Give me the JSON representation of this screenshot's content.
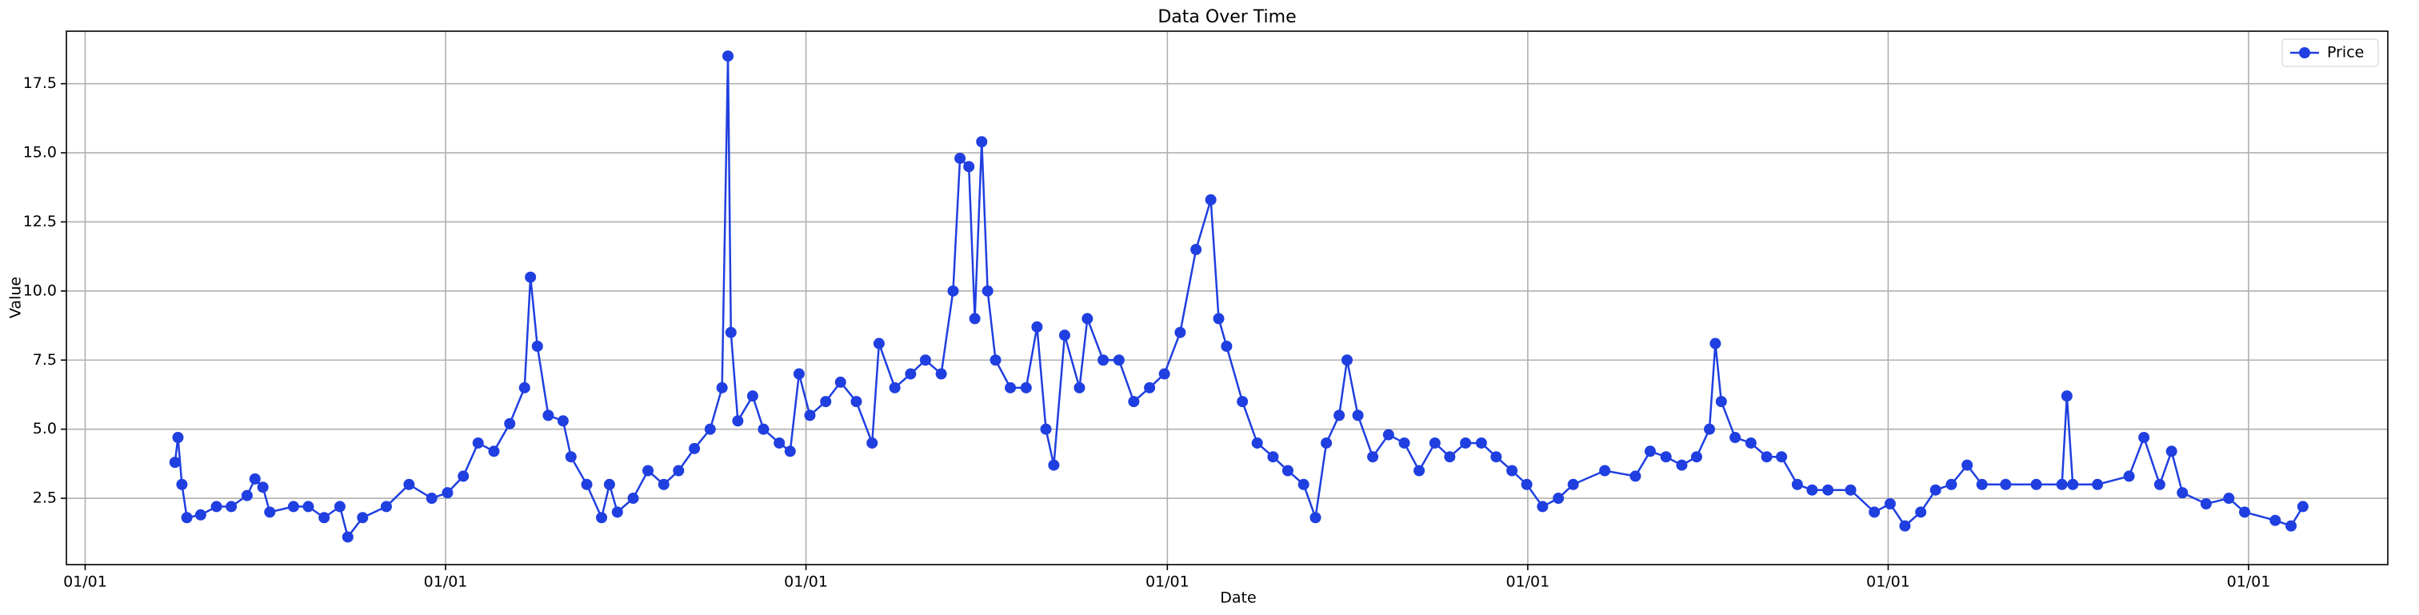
{
  "chart_data": {
    "type": "line",
    "title": "Data Over Time",
    "x_label": "Date",
    "y_label": "Value",
    "x": [
      91,
      94,
      98,
      103,
      117,
      133,
      148,
      164,
      172,
      180,
      187,
      211,
      226,
      242,
      258,
      266,
      281,
      305,
      328,
      351,
      367,
      383,
      398,
      414,
      430,
      445,
      451,
      458,
      469,
      484,
      492,
      508,
      523,
      531,
      539,
      555,
      570,
      586,
      601,
      617,
      633,
      645,
      651,
      654,
      661,
      676,
      687,
      703,
      714,
      723,
      734,
      750,
      765,
      781,
      797,
      804,
      820,
      836,
      851,
      867,
      879,
      886,
      895,
      901,
      908,
      914,
      922,
      937,
      953,
      964,
      973,
      981,
      992,
      1007,
      1015,
      1031,
      1047,
      1062,
      1078,
      1093,
      1109,
      1125,
      1140,
      1148,
      1156,
      1172,
      1187,
      1203,
      1218,
      1234,
      1246,
      1257,
      1270,
      1278,
      1289,
      1304,
      1320,
      1336,
      1351,
      1367,
      1382,
      1398,
      1414,
      1429,
      1445,
      1460,
      1476,
      1492,
      1507,
      1539,
      1570,
      1585,
      1601,
      1617,
      1632,
      1645,
      1651,
      1657,
      1671,
      1687,
      1703,
      1718,
      1734,
      1749,
      1765,
      1788,
      1812,
      1828,
      1843,
      1859,
      1874,
      1890,
      1906,
      1921,
      1945,
      1976,
      2002,
      2007,
      2013,
      2038,
      2070,
      2085,
      2101,
      2113,
      2124,
      2148,
      2171,
      2187,
      2218,
      2234,
      2246
    ],
    "series": [
      {
        "name": "Price",
        "color": "#1f3fe0",
        "values": [
          3.8,
          4.7,
          3.0,
          1.8,
          1.9,
          2.2,
          2.2,
          2.6,
          3.2,
          2.9,
          2.0,
          2.2,
          2.2,
          1.8,
          2.2,
          1.1,
          1.8,
          2.2,
          3.0,
          2.5,
          2.7,
          3.3,
          4.5,
          4.2,
          5.2,
          6.5,
          10.5,
          8.0,
          5.5,
          5.3,
          4.0,
          3.0,
          1.8,
          3.0,
          2.0,
          2.5,
          3.5,
          3.0,
          3.5,
          4.3,
          5.0,
          6.5,
          18.5,
          8.5,
          5.3,
          6.2,
          5.0,
          4.5,
          4.2,
          7.0,
          5.5,
          6.0,
          6.7,
          6.0,
          4.5,
          8.1,
          6.5,
          7.0,
          7.5,
          7.0,
          10.0,
          14.8,
          14.5,
          9.0,
          15.4,
          10.0,
          7.5,
          6.5,
          6.5,
          8.7,
          5.0,
          3.7,
          8.4,
          6.5,
          9.0,
          7.5,
          7.5,
          6.0,
          6.5,
          7.0,
          8.5,
          11.5,
          13.3,
          9.0,
          8.0,
          6.0,
          4.5,
          4.0,
          3.5,
          3.0,
          1.8,
          4.5,
          5.5,
          7.5,
          5.5,
          4.0,
          4.8,
          4.5,
          3.5,
          4.5,
          4.0,
          4.5,
          4.5,
          4.0,
          3.5,
          3.0,
          2.2,
          2.5,
          3.0,
          3.5,
          3.3,
          4.2,
          4.0,
          3.7,
          4.0,
          5.0,
          8.1,
          6.0,
          4.7,
          4.5,
          4.0,
          4.0,
          3.0,
          2.8,
          2.8,
          2.8,
          2.0,
          2.3,
          1.5,
          2.0,
          2.8,
          3.0,
          3.7,
          3.0,
          3.0,
          3.0,
          3.0,
          6.2,
          3.0,
          3.0,
          3.3,
          4.7,
          3.0,
          4.2,
          2.7,
          2.3,
          2.5,
          2.0,
          1.7,
          1.5,
          2.2
        ]
      }
    ],
    "xlim": [
      -19,
      2332
    ],
    "xticks": [
      {
        "value": 0,
        "label": "01/01"
      },
      {
        "value": 365,
        "label": "01/01"
      },
      {
        "value": 730,
        "label": "01/01"
      },
      {
        "value": 1096,
        "label": "01/01"
      },
      {
        "value": 1461,
        "label": "01/01"
      },
      {
        "value": 1826,
        "label": "01/01"
      },
      {
        "value": 2191,
        "label": "01/01"
      }
    ],
    "ylim": [
      0.1,
      19.4
    ],
    "yticks": [
      {
        "value": 2.5,
        "label": "2.5"
      },
      {
        "value": 5,
        "label": "5.0"
      },
      {
        "value": 7.5,
        "label": "7.5"
      },
      {
        "value": 10,
        "label": "10.0"
      },
      {
        "value": 12.5,
        "label": "12.5"
      },
      {
        "value": 15,
        "label": "15.0"
      },
      {
        "value": 17.5,
        "label": "17.5"
      }
    ],
    "grid": true,
    "legend": "upper right",
    "marker": "o"
  }
}
